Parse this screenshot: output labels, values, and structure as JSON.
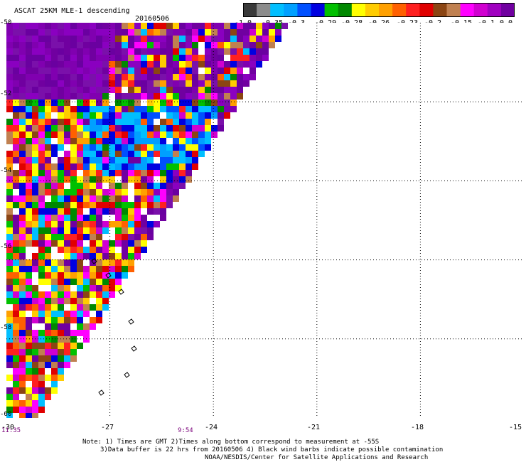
{
  "header": {
    "title": "ASCAT 25KM MLE-1 descending",
    "date": "20160506"
  },
  "legend": {
    "colors": [
      "#3a3a3a",
      "#8c8c8c",
      "#00bfff",
      "#00a0ff",
      "#0050ff",
      "#0000e0",
      "#00c000",
      "#008800",
      "#ffff00",
      "#ffcc00",
      "#ffa000",
      "#ff6000",
      "#ff2020",
      "#e00000",
      "#8b4513",
      "#c08050",
      "#ff00ff",
      "#d000d0",
      "#a000c0",
      "#7000a0"
    ],
    "labels": [
      "-1.0",
      "-0.35",
      "-0.3",
      "-0.29",
      "-0.28",
      "-0.26",
      "-0.23",
      "-0.2",
      "-0.15",
      "-0.1",
      "0.0"
    ]
  },
  "map": {
    "lon_range": [
      -30,
      -15
    ],
    "lat_range": [
      -50,
      -60
    ],
    "lon_ticks": [
      "-30",
      "-27",
      "-24",
      "-21",
      "-18",
      "-15"
    ],
    "lat_ticks": [
      "-50",
      "-52",
      "-54",
      "-56",
      "-58",
      "-60"
    ],
    "times": [
      "11:35",
      "9:54"
    ]
  },
  "footer": {
    "line1": "Note: 1) Times are GMT 2)Times along bottom correspond to measurement at -55S",
    "line2": "3)Data buffer is 22 hrs from 20160506 4) Black wind barbs indicate possible contamination",
    "line3": "NOAA/NESDIS/Center for Satellite Applications and Research"
  }
}
